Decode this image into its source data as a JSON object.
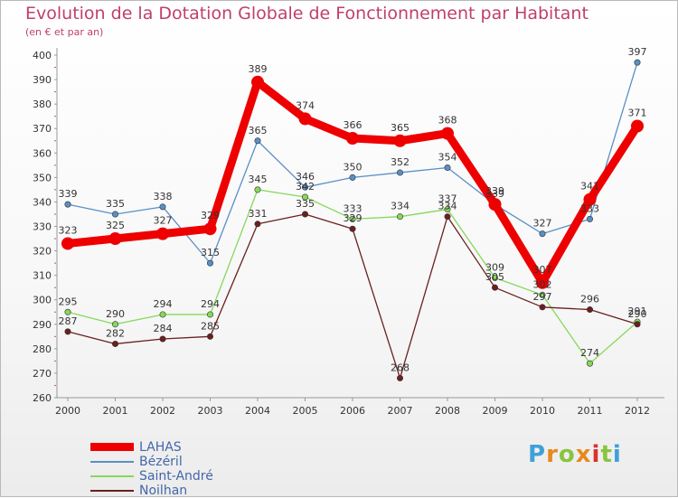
{
  "title": "Evolution de la Dotation Globale de Fonctionnement par Habitant",
  "subtitle": "(en € et par an)",
  "logo": {
    "text": "Proxiti",
    "letter_colors": [
      "#3fa0d8",
      "#e8891c",
      "#8ac43f",
      "#e8891c",
      "#d8322e",
      "#8ac43f",
      "#3fa0d8"
    ]
  },
  "chart_data": {
    "type": "line",
    "title": "Evolution de la Dotation Globale de Fonctionnement par Habitant",
    "subtitle": "(en € et par an)",
    "xlabel": "",
    "ylabel": "",
    "categories": [
      "2000",
      "2001",
      "2002",
      "2003",
      "2004",
      "2005",
      "2006",
      "2007",
      "2008",
      "2009",
      "2010",
      "2011",
      "2012"
    ],
    "ylim": [
      260,
      400
    ],
    "yticks": [
      260,
      270,
      280,
      290,
      300,
      310,
      320,
      330,
      340,
      350,
      360,
      370,
      380,
      390,
      400
    ],
    "grid": false,
    "legend_position": "bottom-left",
    "series": [
      {
        "name": "LAHAS",
        "color": "#ee0000",
        "emphasis": true,
        "values": [
          323,
          325,
          327,
          329,
          389,
          374,
          366,
          365,
          368,
          339,
          307,
          341,
          371
        ]
      },
      {
        "name": "Bézéril",
        "color": "#5a8fc7",
        "emphasis": false,
        "values": [
          339,
          335,
          338,
          315,
          365,
          346,
          350,
          352,
          354,
          339,
          327,
          333,
          397
        ]
      },
      {
        "name": "Saint-André",
        "color": "#86d85a",
        "emphasis": false,
        "values": [
          295,
          290,
          294,
          294,
          345,
          342,
          333,
          334,
          337,
          309,
          302,
          274,
          291
        ]
      },
      {
        "name": "Noilhan",
        "color": "#6b1f1f",
        "emphasis": false,
        "values": [
          287,
          282,
          284,
          285,
          331,
          335,
          329,
          268,
          334,
          305,
          297,
          296,
          290
        ]
      }
    ]
  }
}
